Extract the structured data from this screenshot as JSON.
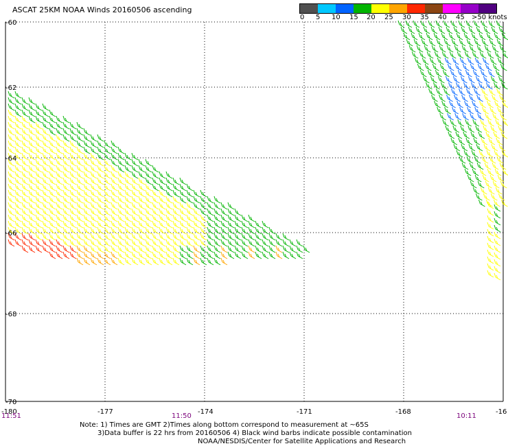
{
  "title": "ASCAT 25KM NOAA Winds 20160506 ascending",
  "legend": {
    "labels": [
      "0",
      "5",
      "10",
      "15",
      "20",
      "25",
      "30",
      "35",
      "40",
      "45",
      ">50 knots"
    ],
    "colors": [
      "#505050",
      "#00c8ff",
      "#0064ff",
      "#00b400",
      "#ffff00",
      "#ffa500",
      "#ff2800",
      "#8b4513",
      "#ff00ff",
      "#9600c8",
      "#500080"
    ]
  },
  "axes": {
    "lon_labels": [
      "-180",
      "-177",
      "-174",
      "-171",
      "-168",
      "-16"
    ],
    "lat_labels": [
      "-60",
      "-62",
      "-64",
      "-66",
      "-68",
      "-70"
    ]
  },
  "times": [
    "11:51",
    "11:50",
    "10:11"
  ],
  "notes": {
    "line1": "Note: 1) Times are GMT 2)Times along bottom correspond to measurement at ~65S",
    "line2": "3)Data buffer is 22 hrs from 20160506 4) Black wind barbs indicate possible contamination",
    "line3": "NOAA/NESDIS/Center for Satellite Applications and Research"
  }
}
